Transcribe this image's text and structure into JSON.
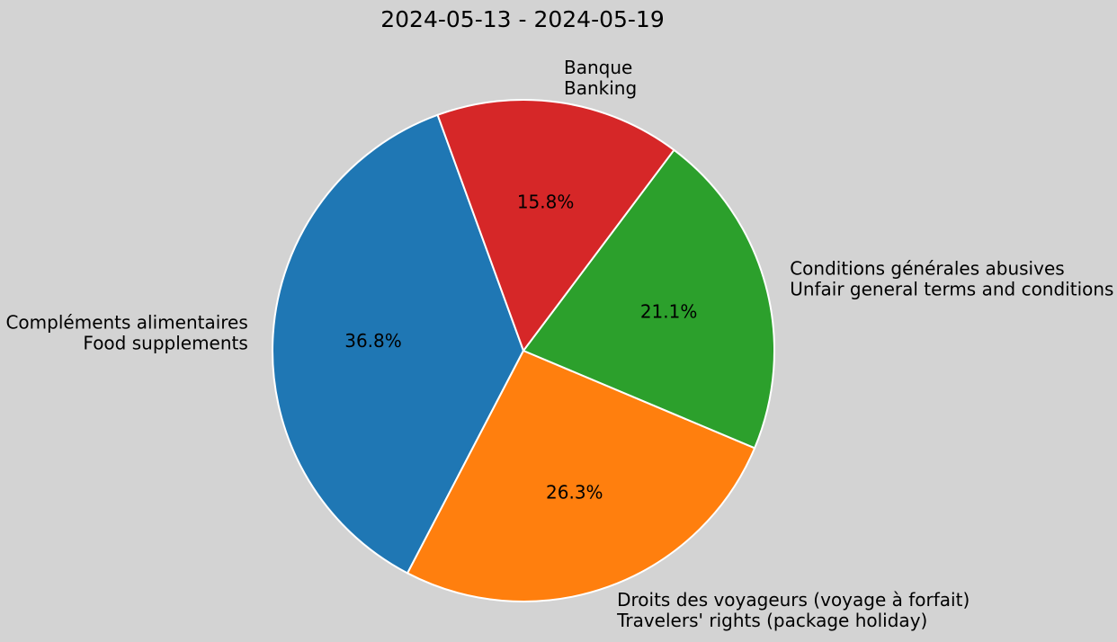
{
  "figure": {
    "background": "#d3d3d3",
    "text_color": "#000000",
    "wedge_edge_color": "#ffffff"
  },
  "chart_data": {
    "type": "pie",
    "title": "2024-05-13 - 2024-05-19",
    "start_angle": 110,
    "counterclockwise": true,
    "legend_position": "none",
    "slices": [
      {
        "label_fr": "Compléments alimentaires",
        "label_en": "Food supplements",
        "value": 36.8,
        "percent_label": "36.8%",
        "color": "#1f77b4"
      },
      {
        "label_fr": "Droits des voyageurs (voyage à forfait)",
        "label_en": "Travelers' rights (package holiday)",
        "value": 26.3,
        "percent_label": "26.3%",
        "color": "#ff7f0e"
      },
      {
        "label_fr": "Conditions générales abusives",
        "label_en": "Unfair general terms and conditions",
        "value": 21.1,
        "percent_label": "21.1%",
        "color": "#2ca02c"
      },
      {
        "label_fr": "Banque",
        "label_en": "Banking",
        "value": 15.8,
        "percent_label": "15.8%",
        "color": "#d62728"
      }
    ]
  }
}
